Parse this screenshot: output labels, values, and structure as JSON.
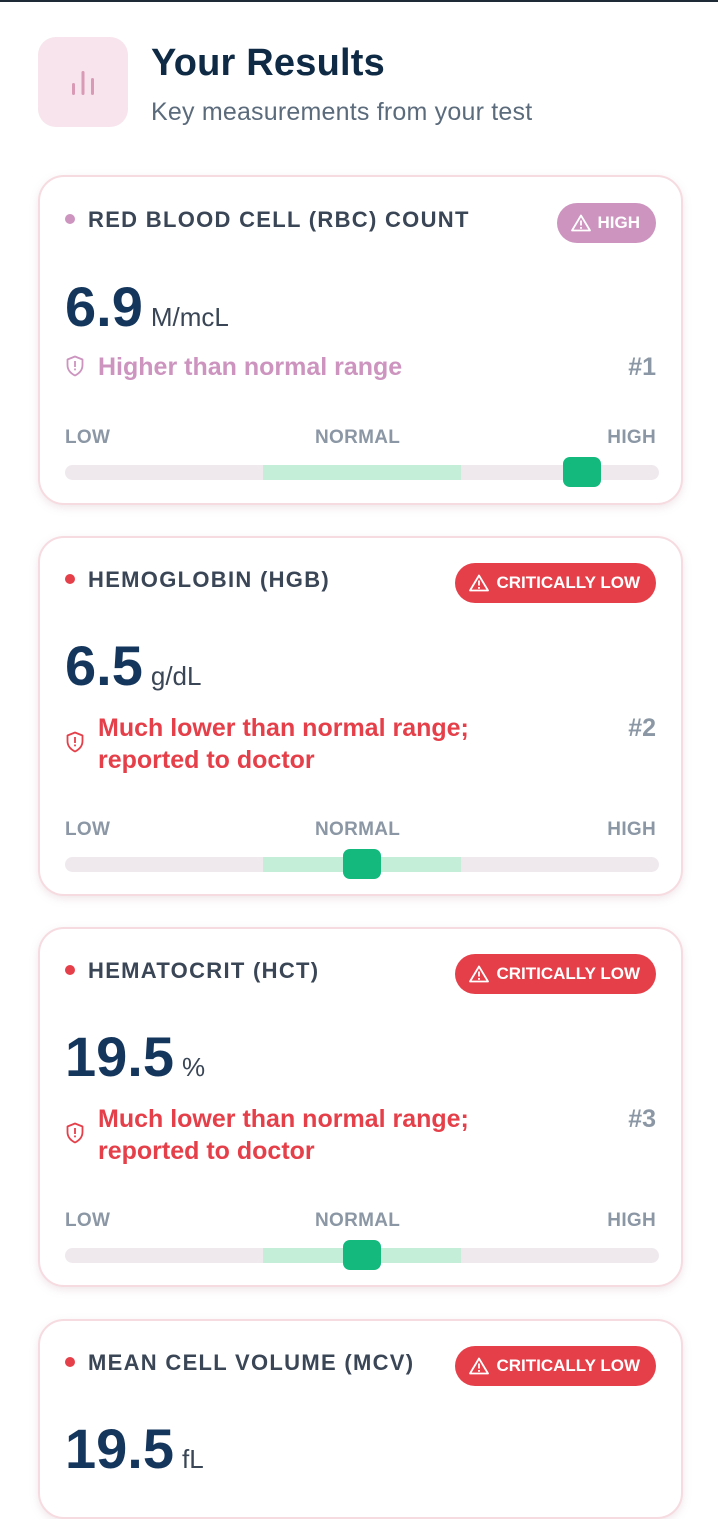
{
  "header": {
    "icon": "bar-chart-icon",
    "title": "Your Results",
    "subtitle": "Key measurements from your test"
  },
  "scale": {
    "low": "LOW",
    "normal": "NORMAL",
    "high": "HIGH"
  },
  "results": [
    {
      "name": "RED BLOOD CELL (RBC) COUNT",
      "status": "HIGH",
      "value": "6.9",
      "unit": "M/mcL",
      "message": "Higher than normal range",
      "rank": "#1",
      "accent_color": "#cc94bf",
      "marker_level": 0.87
    },
    {
      "name": "HEMOGLOBIN (HGB)",
      "status": "CRITICALLY LOW",
      "value": "6.5",
      "unit": "g/dL",
      "message": "Much lower than normal range; reported to doctor",
      "rank": "#2",
      "accent_color": "#e5404a",
      "marker_level": 0.5
    },
    {
      "name": "HEMATOCRIT (HCT)",
      "status": "CRITICALLY LOW",
      "value": "19.5",
      "unit": "%",
      "message": "Much lower than normal range; reported to doctor",
      "rank": "#3",
      "accent_color": "#e5404a",
      "marker_level": 0.5
    },
    {
      "name": "MEAN CELL VOLUME (MCV)",
      "status": "CRITICALLY LOW",
      "value": "19.5",
      "unit": "fL",
      "accent_color": "#e5404a"
    }
  ],
  "colors": {
    "normal_zone": "#c5eed9",
    "marker": "#13b97d",
    "track": "#efe9ee"
  }
}
